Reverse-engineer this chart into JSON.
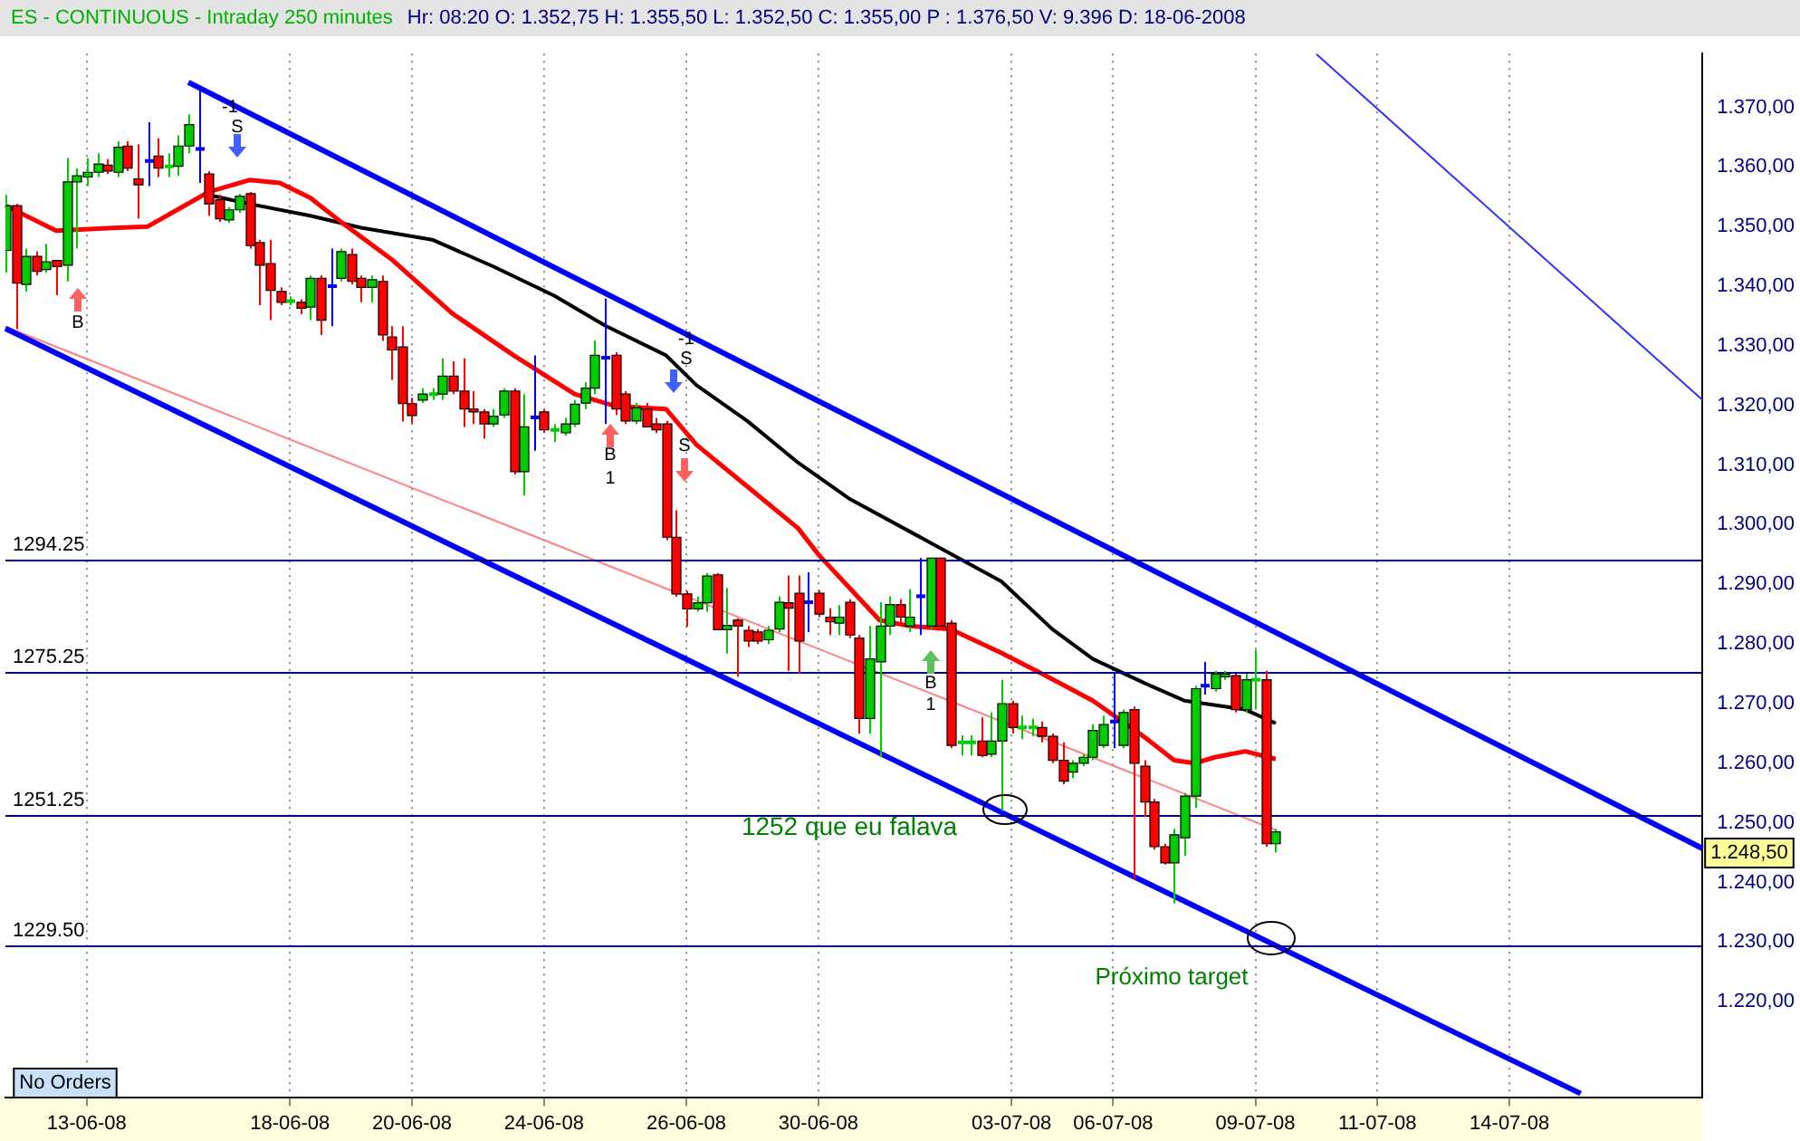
{
  "chart_data": {
    "type": "candlestick",
    "title": "ES - CONTINUOUS - Intraday 250 minutes",
    "subtitle": "Hr: 08:20  O: 1.352,75  H: 1.355,50  L: 1.352,50  C: 1.355,00  P : 1.376,50  V: 9.396  D: 18-06-2008",
    "categories": [
      null,
      null,
      null,
      null,
      null,
      null,
      null,
      null,
      "13-06-08",
      null,
      null,
      null,
      null,
      null,
      null,
      null,
      null,
      null,
      null,
      null,
      null,
      null,
      null,
      null,
      null,
      null,
      null,
      null,
      "18-06-08",
      null,
      null,
      null,
      null,
      null,
      null,
      null,
      null,
      null,
      null,
      null,
      "20-06-08",
      null,
      null,
      null,
      null,
      null,
      null,
      null,
      null,
      null,
      null,
      null,
      null,
      "24-06-08",
      null,
      null,
      null,
      null,
      null,
      null,
      null,
      null,
      null,
      null,
      null,
      null,
      null,
      "26-06-08",
      null,
      null,
      null,
      null,
      null,
      null,
      null,
      null,
      null,
      null,
      null,
      null,
      "30-06-08",
      null,
      null,
      null,
      null,
      null,
      null,
      null,
      null,
      null,
      null,
      null,
      null,
      null,
      null,
      null,
      null,
      null,
      null,
      "03-07-08",
      null,
      null,
      null,
      null,
      null,
      null,
      null,
      null,
      null,
      "06-07-08",
      null,
      null,
      null,
      null,
      null,
      null,
      null,
      null,
      null,
      null,
      null,
      null,
      null,
      "09-07-08",
      null,
      null,
      null,
      null,
      null,
      null,
      null,
      null,
      null,
      null,
      null,
      "11-07-08",
      null,
      null,
      null,
      null,
      null,
      null,
      null,
      null,
      null,
      null,
      null,
      null,
      "14-07-08",
      null,
      null,
      null,
      null,
      null,
      null,
      null,
      null,
      null,
      null,
      null,
      null,
      null,
      null,
      null,
      null,
      null,
      null,
      null
    ],
    "ohlc": [
      [
        1346,
        1355.3,
        1342.3,
        1353.5
      ],
      [
        1353.5,
        1353.8,
        1332.8,
        1340.5
      ],
      [
        1340.3,
        1346.3,
        1339.1,
        1345
      ],
      [
        1345,
        1345.8,
        1341.8,
        1342.5
      ],
      [
        1342.8,
        1347.1,
        1342.3,
        1344.1
      ],
      [
        1344.3,
        1344.3,
        1338.5,
        1343.3
      ],
      [
        1343.5,
        1361.5,
        1340.8,
        1357.5
      ],
      [
        1357.5,
        1359.8,
        1346.3,
        1358.5
      ],
      [
        1358.3,
        1361.5,
        1356.8,
        1359.1
      ],
      [
        1359.1,
        1362.3,
        1358.3,
        1360.5
      ],
      [
        1360.3,
        1361.3,
        1358.8,
        1359.3
      ],
      [
        1359.1,
        1364.3,
        1358.3,
        1363.3
      ],
      [
        1363.5,
        1364.3,
        1359.3,
        1359.8
      ],
      [
        1358,
        1363.8,
        1351.3,
        1357
      ],
      [
        1361,
        1367.5,
        1356.8,
        1361
      ],
      [
        1361.8,
        1364.8,
        1358.3,
        1359.8
      ],
      [
        1360.1,
        1362.3,
        1358.3,
        1360.1
      ],
      [
        1360.1,
        1365.3,
        1358.5,
        1363.5
      ],
      [
        1363.5,
        1368.8,
        1362.3,
        1367.1
      ],
      [
        1363,
        1372.8,
        1357.3,
        1363
      ],
      [
        1358.8,
        1359.3,
        1351.8,
        1353.8
      ],
      [
        1354.5,
        1355.3,
        1350.8,
        1351.3
      ],
      [
        1351.1,
        1353.3,
        1350.6,
        1352.8
      ],
      [
        1352.8,
        1355.5,
        1352.3,
        1355.1
      ],
      [
        1355.5,
        1355.8,
        1346.3,
        1346.8
      ],
      [
        1347.3,
        1347.8,
        1336.8,
        1343.5
      ],
      [
        1343.8,
        1347.8,
        1334.3,
        1339.3
      ],
      [
        1339.1,
        1339.8,
        1336.8,
        1337.3
      ],
      [
        1337.5,
        1338.3,
        1336.8,
        1337.5
      ],
      [
        1337.3,
        1337.8,
        1335.3,
        1336.3
      ],
      [
        1336.5,
        1341.8,
        1334.3,
        1341.3
      ],
      [
        1341.3,
        1341.8,
        1331.8,
        1334.3
      ],
      [
        1340,
        1346.3,
        1333.3,
        1340
      ],
      [
        1341.3,
        1346.3,
        1340.8,
        1345.8
      ],
      [
        1345.3,
        1346.3,
        1340.3,
        1340.8
      ],
      [
        1341.3,
        1341.8,
        1337.3,
        1339.8
      ],
      [
        1339.8,
        1341.8,
        1337.3,
        1341.1
      ],
      [
        1340.8,
        1341.8,
        1330.8,
        1331.8
      ],
      [
        1331.5,
        1333.3,
        1324.3,
        1329.3
      ],
      [
        1329.8,
        1333.3,
        1317.3,
        1320.3
      ],
      [
        1320.3,
        1321.3,
        1317,
        1318.3
      ],
      [
        1320.9,
        1322.9,
        1320.4,
        1321.9
      ],
      [
        1321.9,
        1322.9,
        1320.9,
        1321.9
      ],
      [
        1321.9,
        1327.9,
        1320.9,
        1324.9
      ],
      [
        1324.9,
        1327.4,
        1321.9,
        1322.4
      ],
      [
        1322.4,
        1327.9,
        1316.4,
        1319.4
      ],
      [
        1319.4,
        1322.4,
        1316.9,
        1318.9
      ],
      [
        1318.9,
        1319.4,
        1314.4,
        1316.9
      ],
      [
        1316.9,
        1319.4,
        1316.4,
        1318.2
      ],
      [
        1318.4,
        1322.9,
        1317.9,
        1322.4
      ],
      [
        1322.4,
        1322.9,
        1308.4,
        1308.9
      ],
      [
        1308.9,
        1321.9,
        1304.9,
        1316.4
      ],
      [
        1318,
        1328.4,
        1312.4,
        1318
      ],
      [
        1318.9,
        1319.4,
        1315.4,
        1315.9
      ],
      [
        1315.9,
        1316.9,
        1313.9,
        1315.9
      ],
      [
        1315.4,
        1317.9,
        1314.9,
        1316.9
      ],
      [
        1316.9,
        1320.9,
        1316.4,
        1320.2
      ],
      [
        1320.4,
        1323.9,
        1319.4,
        1322.9
      ],
      [
        1322.9,
        1330.9,
        1321.9,
        1328.4
      ],
      [
        1328,
        1337.9,
        1316.9,
        1328
      ],
      [
        1328.4,
        1328.9,
        1318.4,
        1319.4
      ],
      [
        1321.9,
        1322.4,
        1316.9,
        1317.4
      ],
      [
        1317.4,
        1320.4,
        1316.9,
        1319.6
      ],
      [
        1319.4,
        1320.4,
        1316.4,
        1316.4
      ],
      [
        1316.9,
        1317.9,
        1315.4,
        1315.9
      ],
      [
        1316.9,
        1317.4,
        1297.4,
        1297.9
      ],
      [
        1297.9,
        1302.4,
        1287.9,
        1288.4
      ],
      [
        1288.4,
        1288.9,
        1282.9,
        1285.9
      ],
      [
        1285.9,
        1287.9,
        1285.4,
        1286.9
      ],
      [
        1286.9,
        1291.9,
        1285.4,
        1291.4
      ],
      [
        1291.6,
        1291.9,
        1282.3,
        1282.4
      ],
      [
        1282.4,
        1289.4,
        1278.4,
        1283.1
      ],
      [
        1284,
        1284.3,
        1274.5,
        1283
      ],
      [
        1282.3,
        1283,
        1279.5,
        1280.5
      ],
      [
        1282,
        1282.5,
        1280,
        1280.5
      ],
      [
        1280.7,
        1283,
        1280,
        1282.3
      ],
      [
        1282.5,
        1288,
        1282,
        1287
      ],
      [
        1286.9,
        1291.5,
        1275.5,
        1286
      ],
      [
        1288.5,
        1291.5,
        1275,
        1280.5
      ],
      [
        1287,
        1292,
        1282,
        1287
      ],
      [
        1288.5,
        1289,
        1284.5,
        1285
      ],
      [
        1284.5,
        1286,
        1281.5,
        1283.7
      ],
      [
        1283.5,
        1286.5,
        1281.5,
        1284.5
      ],
      [
        1287,
        1287.5,
        1281,
        1281.5
      ],
      [
        1281,
        1281.5,
        1265,
        1267.5
      ],
      [
        1267.5,
        1283,
        1265,
        1277.5
      ],
      [
        1277,
        1287,
        1261,
        1283
      ],
      [
        1283,
        1288,
        1281.5,
        1286.6
      ],
      [
        1286.6,
        1287.5,
        1283.5,
        1284.5
      ],
      [
        1283,
        1289.2,
        1282,
        1284.5
      ],
      [
        1288,
        1294.4,
        1281.5,
        1288
      ],
      [
        1283,
        1294.5,
        1282.5,
        1294.4
      ],
      [
        1294.4,
        1294.5,
        1282.5,
        1283
      ],
      [
        1283.5,
        1284,
        1262.5,
        1263
      ],
      [
        1263.5,
        1264.7,
        1261.3,
        1263.5
      ],
      [
        1263.5,
        1264.7,
        1261.3,
        1263.5
      ],
      [
        1263.7,
        1267.7,
        1261,
        1261.3
      ],
      [
        1261.5,
        1268.5,
        1261,
        1263.7
      ],
      [
        1263.7,
        1274,
        1252,
        1270
      ],
      [
        1270,
        1270.5,
        1265,
        1266
      ],
      [
        1266,
        1268,
        1264,
        1266
      ],
      [
        1266,
        1267.5,
        1264.5,
        1266
      ],
      [
        1266,
        1267,
        1263.5,
        1264.5
      ],
      [
        1264.5,
        1265,
        1260,
        1260.5
      ],
      [
        1260.5,
        1263.5,
        1256.5,
        1257
      ],
      [
        1258.5,
        1260.5,
        1257.5,
        1260
      ],
      [
        1260,
        1261.5,
        1259.5,
        1261
      ],
      [
        1261,
        1266.5,
        1260.5,
        1265.5
      ],
      [
        1263,
        1268,
        1262.5,
        1266.5
      ],
      [
        1267,
        1275,
        1262.5,
        1267
      ],
      [
        1263,
        1269,
        1262.5,
        1268.5
      ],
      [
        1269,
        1269.5,
        1240.5,
        1260
      ],
      [
        1259.5,
        1260.5,
        1251,
        1253.5
      ],
      [
        1253.5,
        1254,
        1245.5,
        1246
      ],
      [
        1246,
        1246.5,
        1243,
        1243.3
      ],
      [
        1243.3,
        1249,
        1236.5,
        1248
      ],
      [
        1247.5,
        1255,
        1244.5,
        1254.5
      ],
      [
        1254.5,
        1273,
        1252.5,
        1272.5
      ],
      [
        1273,
        1277,
        1271.5,
        1273
      ],
      [
        1272.5,
        1275.5,
        1272,
        1275
      ],
      [
        1274.5,
        1275.5,
        1274,
        1275
      ],
      [
        1274.7,
        1275,
        1268.5,
        1269
      ],
      [
        1269,
        1275,
        1268.5,
        1274
      ],
      [
        1274,
        1279,
        1269,
        1274
      ],
      [
        1274,
        1275.5,
        1246,
        1246.5
      ],
      [
        1246.5,
        1249,
        1245,
        1248.5
      ],
      null,
      null,
      null,
      null,
      null,
      null,
      null,
      null,
      null,
      null,
      null,
      null,
      null,
      null,
      null,
      null,
      null,
      null,
      null,
      null,
      null,
      null,
      null,
      null,
      null,
      null,
      null,
      null,
      null,
      null,
      null,
      null,
      null,
      null,
      null,
      null,
      null,
      null,
      null,
      null,
      null,
      null
    ],
    "colors": [
      "#00cc00",
      "#ff0000",
      "#00cc00",
      "#ff0000",
      "#00cc00",
      "#ff0000",
      "#00cc00",
      "#00cc00",
      "#00cc00",
      "#00cc00",
      "#ff0000",
      "#00cc00",
      "#ff0000",
      "#ff0000",
      "#0000ff",
      "#ff0000",
      "#00cc00",
      "#00cc00",
      "#00cc00",
      "#0000ff",
      "#ff0000",
      "#ff0000",
      "#00cc00",
      "#00cc00",
      "#ff0000",
      "#ff0000",
      "#ff0000",
      "#ff0000",
      "#00cc00",
      "#ff0000",
      "#00cc00",
      "#ff0000",
      "#0000ff",
      "#00cc00",
      "#ff0000",
      "#ff0000",
      "#00cc00",
      "#ff0000",
      "#ff0000",
      "#ff0000",
      "#ff0000",
      "#00cc00",
      "#00cc00",
      "#00cc00",
      "#ff0000",
      "#ff0000",
      "#ff0000",
      "#ff0000",
      "#00cc00",
      "#00cc00",
      "#ff0000",
      "#00cc00",
      "#0000ff",
      "#ff0000",
      "#00cc00",
      "#00cc00",
      "#00cc00",
      "#00cc00",
      "#00cc00",
      "#0000ff",
      "#ff0000",
      "#ff0000",
      "#00cc00",
      "#ff0000",
      "#ff0000",
      "#ff0000",
      "#ff0000",
      "#ff0000",
      "#00cc00",
      "#00cc00",
      "#ff0000",
      "#00cc00",
      "#ff0000",
      "#ff0000",
      "#ff0000",
      "#00cc00",
      "#00cc00",
      "#ff0000",
      "#ff0000",
      "#0000ff",
      "#ff0000",
      "#ff0000",
      "#00cc00",
      "#ff0000",
      "#ff0000",
      "#00cc00",
      "#00cc00",
      "#00cc00",
      "#ff0000",
      "#00cc00",
      "#0000ff",
      "#00cc00",
      "#ff0000",
      "#ff0000",
      "#00cc00",
      "#00cc00",
      "#ff0000",
      "#00cc00",
      "#00cc00",
      "#ff0000",
      "#00cc00",
      "#00cc00",
      "#ff0000",
      "#ff0000",
      "#ff0000",
      "#00cc00",
      "#00cc00",
      "#00cc00",
      "#00cc00",
      "#0000ff",
      "#00cc00",
      "#ff0000",
      "#ff0000",
      "#ff0000",
      "#ff0000",
      "#00cc00",
      "#00cc00",
      "#00cc00",
      "#0000ff",
      "#00cc00",
      "#00cc00",
      "#ff0000",
      "#00cc00",
      "#00cc00",
      "#ff0000",
      "#00cc00",
      null,
      null,
      null,
      null,
      null,
      null,
      null,
      null,
      null,
      null,
      null,
      null,
      null,
      null,
      null,
      null,
      null,
      null,
      null,
      null,
      null,
      null,
      null,
      null,
      null,
      null,
      null,
      null,
      null,
      null,
      null,
      null,
      null,
      null,
      null,
      null,
      null,
      null,
      null,
      null,
      null,
      null
    ],
    "series": [
      {
        "type": "line",
        "color": "#ff0000",
        "values": [
          1353.5,
          null,
          null,
          null,
          null,
          1349.3,
          null,
          null,
          null,
          null,
          null,
          1349.8,
          null,
          null,
          1350,
          null,
          null,
          null,
          null,
          null,
          1355.8,
          null,
          null,
          null,
          1357.8,
          null,
          null,
          1357.3,
          null,
          null,
          1354.8,
          null,
          null,
          1350.8,
          null,
          null,
          null,
          null,
          1344.5,
          null,
          null,
          null,
          null,
          null,
          1335.4,
          null,
          null,
          null,
          null,
          null,
          1328.4,
          null,
          null,
          null,
          null,
          null,
          1321.9,
          null,
          null,
          null,
          1319.9,
          null,
          null,
          null,
          null,
          1319.4,
          null,
          null,
          1313.4,
          null,
          null,
          null,
          null,
          1306.4,
          null,
          null,
          null,
          null,
          1299.4,
          null,
          1295,
          null,
          null,
          1289.5,
          null,
          null,
          1284,
          null,
          null,
          1283,
          null,
          null,
          null,
          1282.5,
          null,
          null,
          null,
          null,
          1278.5,
          null,
          null,
          null,
          1275,
          null,
          null,
          null,
          null,
          1270.5,
          null,
          null,
          null,
          null,
          1264.5,
          null,
          null,
          1260.5,
          null,
          1260,
          null,
          1261,
          null,
          null,
          1262,
          null,
          null,
          1260.7,
          null,
          null,
          null,
          null,
          null,
          null,
          null,
          null,
          null,
          null,
          null,
          null,
          null,
          null,
          null,
          null,
          null,
          null,
          null,
          null,
          null,
          null,
          null,
          null,
          null,
          null,
          null,
          null,
          null,
          null,
          null,
          null,
          null,
          null,
          null,
          null,
          null,
          null,
          null,
          null,
          null,
          null
        ]
      },
      {
        "type": "line",
        "color": "#000000",
        "values": [
          null,
          null,
          null,
          null,
          null,
          null,
          null,
          null,
          null,
          null,
          null,
          null,
          null,
          null,
          null,
          null,
          null,
          null,
          null,
          null,
          1355.3,
          null,
          null,
          null,
          1353.8,
          null,
          null,
          null,
          null,
          null,
          1351.8,
          null,
          null,
          null,
          null,
          1349.8,
          null,
          null,
          null,
          null,
          null,
          null,
          1347.8,
          null,
          null,
          null,
          null,
          null,
          1343.3,
          null,
          null,
          null,
          null,
          null,
          1338.4,
          null,
          null,
          null,
          null,
          1333.4,
          null,
          null,
          null,
          null,
          null,
          1328.4,
          null,
          null,
          1323.4,
          null,
          null,
          null,
          null,
          1317.4,
          null,
          null,
          null,
          null,
          1310.4,
          null,
          null,
          null,
          null,
          1304.4,
          null,
          null,
          null,
          null,
          null,
          null,
          null,
          1297,
          null,
          null,
          null,
          null,
          null,
          null,
          1290.5,
          null,
          null,
          null,
          null,
          1282.5,
          null,
          null,
          null,
          1277.5,
          null,
          null,
          null,
          null,
          1273.5,
          null,
          null,
          null,
          1270.5,
          null,
          null,
          null,
          null,
          null,
          1269,
          null,
          null,
          1266.7,
          null,
          null,
          null,
          null,
          null,
          null,
          null,
          null,
          null,
          null,
          null,
          null,
          null,
          null,
          null,
          null,
          null,
          null,
          null,
          null,
          null,
          null,
          null,
          null,
          null,
          null,
          null,
          null,
          null,
          null,
          null,
          null,
          null,
          null,
          null,
          null,
          null,
          null,
          null,
          null,
          null,
          null
        ]
      },
      {
        "type": "line",
        "color": "#0000ff",
        "values": [
          null,
          null,
          null,
          null,
          null,
          null,
          null,
          null,
          null,
          null,
          null,
          null,
          null,
          null,
          null,
          null,
          null,
          null,
          1374.2,
          null,
          null,
          null,
          null,
          null,
          null,
          null,
          null,
          null,
          null,
          null,
          null,
          null,
          null,
          null,
          null,
          null,
          null,
          null,
          null,
          null,
          null,
          null,
          null,
          null,
          null,
          null,
          null,
          null,
          null,
          null,
          null,
          null,
          null,
          null,
          null,
          null,
          null,
          null,
          null,
          null,
          null,
          null,
          null,
          null,
          null,
          null,
          null,
          null,
          null,
          null,
          null,
          null,
          null,
          null,
          null,
          null,
          null,
          null,
          null,
          null,
          null,
          null,
          null,
          null,
          null,
          null,
          null,
          null,
          null,
          null,
          null,
          null,
          null,
          null,
          null,
          null,
          null,
          null,
          null,
          null,
          null,
          null,
          null,
          null,
          null,
          null,
          null,
          null,
          null,
          null,
          null,
          null,
          null,
          null,
          null,
          null,
          null,
          null,
          null,
          null,
          null,
          null,
          null,
          null,
          null,
          null,
          null,
          null,
          null,
          null,
          null,
          null,
          null,
          null,
          null,
          null,
          null,
          null,
          null,
          null,
          null,
          null,
          null,
          null,
          null,
          null,
          null,
          null,
          null,
          null,
          null,
          null,
          null,
          null,
          null,
          null,
          null,
          null,
          null,
          null,
          null,
          null,
          null,
          null,
          null,
          null,
          null,
          1245.7
        ]
      },
      {
        "type": "line",
        "color": "#0000ff",
        "values": [
          1332.9,
          null,
          null,
          null,
          null,
          null,
          null,
          null,
          null,
          null,
          null,
          null,
          null,
          null,
          null,
          null,
          null,
          null,
          null,
          null,
          null,
          null,
          null,
          null,
          null,
          null,
          null,
          null,
          null,
          null,
          null,
          null,
          null,
          null,
          null,
          null,
          null,
          null,
          null,
          null,
          null,
          null,
          null,
          null,
          null,
          null,
          null,
          null,
          null,
          null,
          null,
          null,
          null,
          null,
          null,
          null,
          null,
          null,
          null,
          null,
          null,
          null,
          null,
          null,
          null,
          null,
          null,
          null,
          null,
          null,
          null,
          null,
          null,
          null,
          null,
          null,
          null,
          null,
          null,
          null,
          null,
          null,
          null,
          null,
          null,
          null,
          null,
          null,
          null,
          null,
          null,
          null,
          null,
          null,
          null,
          null,
          null,
          null,
          null,
          null,
          null,
          null,
          null,
          null,
          null,
          null,
          null,
          null,
          null,
          null,
          null,
          null,
          null,
          null,
          null,
          null,
          null,
          null,
          null,
          null,
          null,
          null,
          null,
          null,
          null,
          null,
          null,
          null,
          null,
          null,
          null,
          null,
          null,
          null,
          null,
          null,
          null,
          null,
          null,
          null,
          null,
          null,
          null,
          null,
          null,
          null,
          null,
          null,
          null,
          null,
          null,
          null,
          null,
          null,
          null,
          1204.6,
          null,
          null,
          null,
          null,
          null,
          null,
          null,
          null,
          null,
          null,
          null,
          null
        ]
      },
      {
        "type": "line",
        "color": "#3333ff",
        "values": [
          null,
          null,
          null,
          null,
          null,
          null,
          null,
          null,
          null,
          null,
          null,
          null,
          null,
          null,
          null,
          null,
          null,
          null,
          null,
          null,
          null,
          null,
          null,
          null,
          null,
          null,
          null,
          null,
          null,
          null,
          null,
          null,
          null,
          null,
          null,
          null,
          null,
          null,
          null,
          null,
          null,
          null,
          null,
          null,
          null,
          null,
          null,
          null,
          null,
          null,
          null,
          null,
          null,
          null,
          null,
          null,
          null,
          null,
          null,
          null,
          null,
          null,
          null,
          null,
          null,
          null,
          null,
          null,
          null,
          null,
          null,
          null,
          null,
          null,
          null,
          null,
          null,
          null,
          null,
          null,
          null,
          null,
          null,
          null,
          null,
          null,
          null,
          null,
          null,
          null,
          null,
          null,
          null,
          null,
          null,
          null,
          null,
          null,
          null,
          null,
          null,
          null,
          null,
          null,
          null,
          null,
          null,
          null,
          null,
          null,
          null,
          null,
          null,
          null,
          null,
          null,
          null,
          null,
          null,
          null,
          null,
          null,
          null,
          null,
          null,
          null,
          null,
          null,
          null,
          1378.9,
          null,
          null,
          null,
          null,
          null,
          null,
          null,
          null,
          null,
          null,
          null,
          null,
          null,
          null,
          null,
          null,
          null,
          null,
          null,
          null,
          null,
          null,
          null,
          null,
          null,
          null,
          null,
          null,
          null,
          null,
          null,
          null,
          null,
          null,
          null,
          null,
          null,
          1320.9
        ]
      },
      {
        "type": "line",
        "color": "#ff8080",
        "values": [
          1333.2,
          null,
          null,
          null,
          null,
          null,
          null,
          null,
          null,
          null,
          null,
          null,
          null,
          null,
          null,
          null,
          null,
          null,
          null,
          null,
          null,
          null,
          null,
          null,
          null,
          null,
          null,
          null,
          null,
          null,
          null,
          null,
          null,
          null,
          null,
          null,
          null,
          null,
          null,
          null,
          null,
          null,
          null,
          null,
          null,
          null,
          null,
          null,
          null,
          null,
          null,
          null,
          null,
          null,
          null,
          null,
          null,
          null,
          null,
          null,
          null,
          null,
          null,
          null,
          null,
          null,
          null,
          null,
          null,
          null,
          null,
          null,
          null,
          null,
          null,
          null,
          null,
          null,
          null,
          null,
          null,
          null,
          null,
          null,
          null,
          null,
          null,
          null,
          null,
          null,
          null,
          null,
          null,
          null,
          null,
          null,
          null,
          null,
          null,
          null,
          null,
          null,
          null,
          null,
          null,
          null,
          null,
          null,
          null,
          null,
          null,
          null,
          null,
          null,
          null,
          null,
          null,
          null,
          null,
          null,
          null,
          null,
          null,
          null,
          null,
          1248.8,
          null,
          null,
          null,
          null,
          null,
          null,
          null,
          null,
          null,
          null,
          null,
          null,
          null,
          null,
          null,
          null,
          null,
          null,
          null,
          null,
          null,
          null,
          null,
          null,
          null,
          null,
          null,
          null,
          null,
          null,
          null,
          null,
          null,
          null,
          null,
          null,
          null,
          null,
          null,
          null,
          null,
          null
        ]
      }
    ],
    "ylim": [
      1204,
      1379
    ],
    "yticks": [
      {
        "value": 1220,
        "label": "1.220,00"
      },
      {
        "value": 1230,
        "label": "1.230,00"
      },
      {
        "value": 1240,
        "label": "1.240,00"
      },
      {
        "value": 1250,
        "label": "1.250,00"
      },
      {
        "value": 1260,
        "label": "1.260,00"
      },
      {
        "value": 1270,
        "label": "1.270,00"
      },
      {
        "value": 1280,
        "label": "1.280,00"
      },
      {
        "value": 1290,
        "label": "1.290,00"
      },
      {
        "value": 1300,
        "label": "1.300,00"
      },
      {
        "value": 1310,
        "label": "1.310,00"
      },
      {
        "value": 1320,
        "label": "1.320,00"
      },
      {
        "value": 1330,
        "label": "1.330,00"
      },
      {
        "value": 1340,
        "label": "1.340,00"
      },
      {
        "value": 1350,
        "label": "1.350,00"
      },
      {
        "value": 1360,
        "label": "1.360,00"
      },
      {
        "value": 1370,
        "label": "1.370,00"
      }
    ],
    "ref_lines": [
      {
        "axis": "y",
        "value": 1294.25,
        "label": "1294.25",
        "color": "#000080"
      },
      {
        "axis": "y",
        "value": 1275.25,
        "label": "1275.25",
        "color": "#000080"
      },
      {
        "axis": "y",
        "value": 1251.25,
        "label": "1251.25",
        "color": "#000080"
      },
      {
        "axis": "y",
        "value": 1229.5,
        "label": "1229.50",
        "color": "#000080"
      }
    ],
    "annotations": [
      "1252 que eu falava",
      "Próximo target",
      "B",
      "-1",
      "S",
      "B",
      "1",
      "-1",
      "S",
      "S",
      "B",
      "1",
      "No Orders",
      "1.248,50"
    ],
    "grid": "x"
  }
}
